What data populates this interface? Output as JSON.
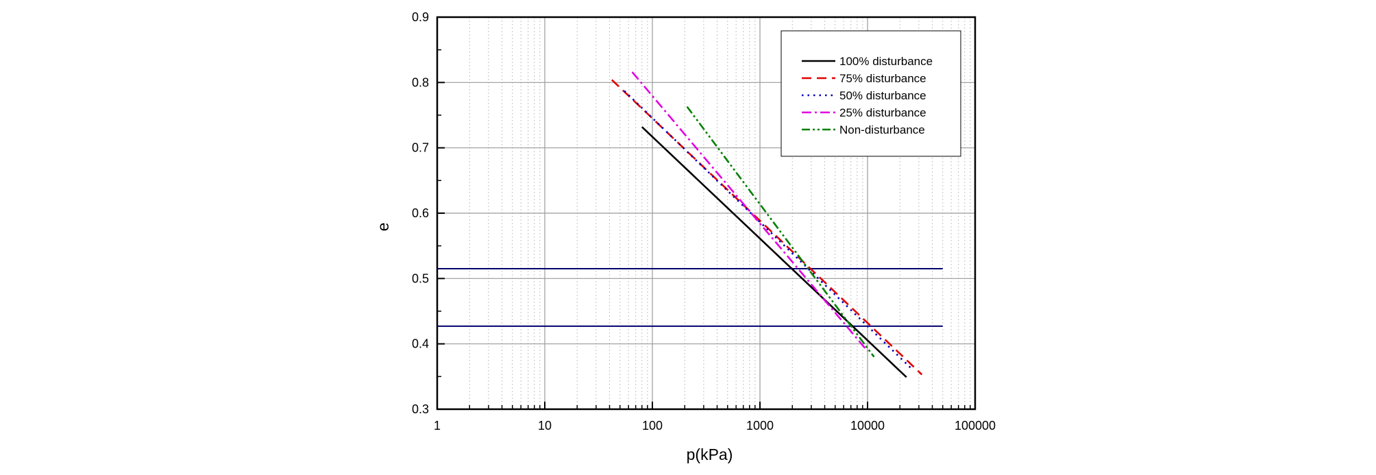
{
  "chart_data": {
    "type": "line",
    "title": "",
    "xlabel": "p(kPa)",
    "ylabel": "e",
    "xscale": "log",
    "xlim": [
      1,
      100000
    ],
    "ylim": [
      0.3,
      0.9
    ],
    "x_ticks": [
      1,
      10,
      100,
      1000,
      10000,
      100000
    ],
    "x_tick_labels": [
      "1",
      "10",
      "100",
      "1000",
      "10000",
      "100000"
    ],
    "y_ticks": [
      0.3,
      0.4,
      0.5,
      0.6,
      0.7,
      0.8,
      0.9
    ],
    "y_tick_labels": [
      "0.3",
      "0.4",
      "0.5",
      "0.6",
      "0.7",
      "0.8",
      "0.9"
    ],
    "grid": true,
    "legend_position": "top-right",
    "series": [
      {
        "name": "100% disturbance",
        "color": "#000000",
        "dash": "solid",
        "x": [
          80,
          23000
        ],
        "y": [
          0.732,
          0.349
        ]
      },
      {
        "name": "75% disturbance",
        "color": "#e00000",
        "dash": "dash",
        "x": [
          42,
          32000
        ],
        "y": [
          0.804,
          0.353
        ]
      },
      {
        "name": "50% disturbance",
        "color": "#0000c0",
        "dash": "dot",
        "x": [
          55,
          26000
        ],
        "y": [
          0.787,
          0.361
        ]
      },
      {
        "name": "25% disturbance",
        "color": "#e000e0",
        "dash": "dashdot",
        "x": [
          65,
          10000
        ],
        "y": [
          0.816,
          0.389
        ]
      },
      {
        "name": "Non-disturbance",
        "color": "#008000",
        "dash": "dashdotdot",
        "x": [
          210,
          11500
        ],
        "y": [
          0.763,
          0.38
        ]
      }
    ],
    "reference_lines": [
      {
        "y": 0.515,
        "x_start": 1,
        "x_end": 50000,
        "color": "#00006e"
      },
      {
        "y": 0.427,
        "x_start": 1,
        "x_end": 50000,
        "color": "#00006e"
      }
    ]
  }
}
